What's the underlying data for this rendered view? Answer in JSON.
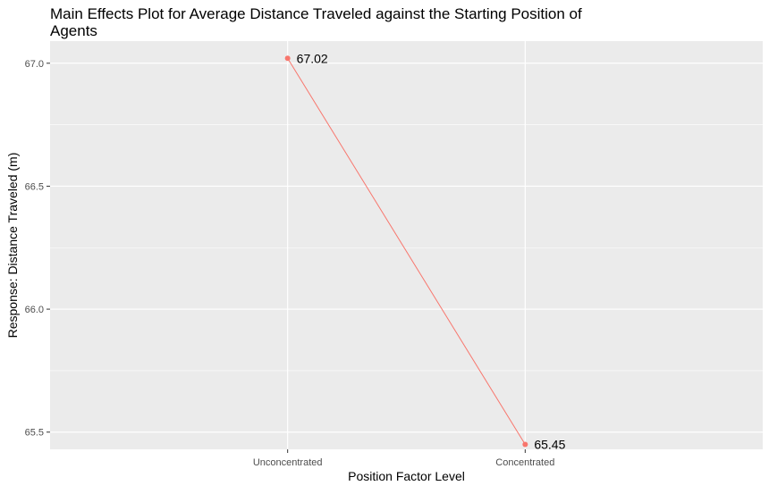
{
  "chart_data": {
    "type": "line",
    "title": "Main Effects Plot for Average Distance Traveled against the Starting Position of Agents",
    "xlabel": "Position Factor Level",
    "ylabel": "Response: Distance Traveled (m)",
    "categories": [
      "Unconcentrated",
      "Concentrated"
    ],
    "series": [
      {
        "values": [
          67.02,
          65.45
        ],
        "labels": [
          "67.02",
          "65.45"
        ]
      }
    ],
    "ylim": [
      65.43,
      67.09
    ],
    "yticks": [
      65.5,
      66.0,
      66.5,
      67.0
    ],
    "ytick_labels": [
      "65.5",
      "66.0",
      "66.5",
      "67.0"
    ],
    "grid": true,
    "legend": "none",
    "colors": {
      "panel": "#EBEBEB",
      "grid": "#FFFFFF",
      "series": "#F8766D",
      "tick_text": "#4D4D4D",
      "axis_text": "#000000"
    }
  }
}
